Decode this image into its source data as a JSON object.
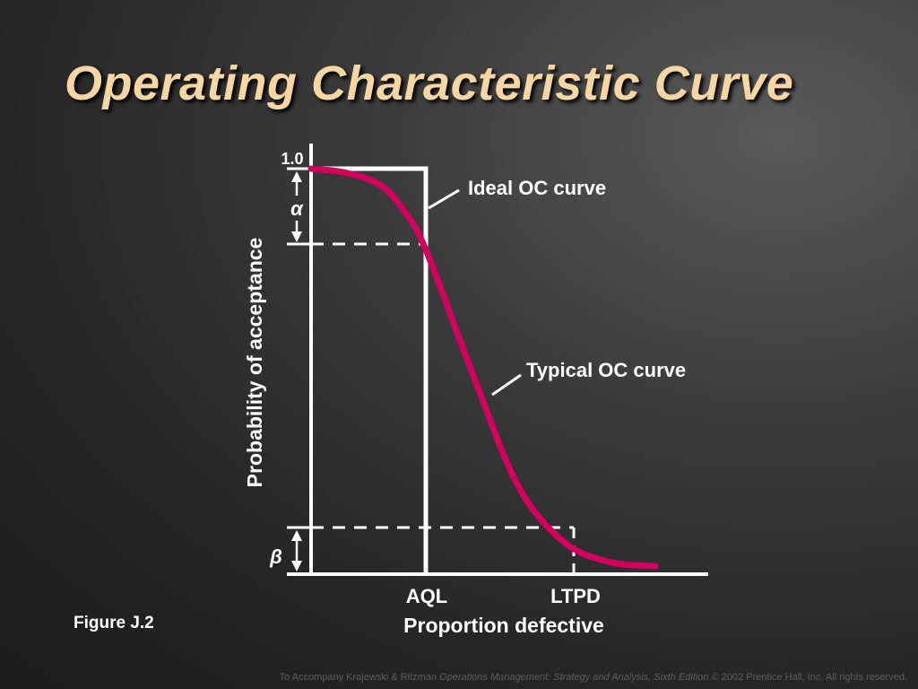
{
  "slide": {
    "title": "Operating Characteristic Curve",
    "figure_label": "Figure J.2",
    "footer": {
      "prefix": "To Accompany Krajewski & Ritzman ",
      "book_title": "Operations Management: Strategy and Analysis, Sixth Edition",
      "suffix": " © 2002 Prentice Hall, Inc. All rights reserved."
    },
    "colors": {
      "title": "#f6d6a2",
      "typical_curve": "#d4005e",
      "lines": "#ffffff"
    }
  },
  "chart_data": {
    "type": "line",
    "ylabel": "Probability of acceptance",
    "xlabel": "Proportion defective",
    "ytick_label": "1.0",
    "x_markers": [
      "AQL",
      "LTPD"
    ],
    "symbols": {
      "alpha": "α",
      "beta": "β"
    },
    "series": [
      {
        "name": "Ideal OC curve",
        "x": [
          0,
          1,
          1,
          3.25
        ],
        "y": [
          1.0,
          1.0,
          0.0,
          0.0
        ]
      },
      {
        "name": "Typical OC curve",
        "x": [
          0,
          0.3,
          0.6,
          0.8,
          1.0,
          1.4,
          1.8,
          2.2,
          2.6,
          3.0
        ],
        "y": [
          1.0,
          0.99,
          0.96,
          0.9,
          0.8,
          0.5,
          0.22,
          0.08,
          0.03,
          0.02
        ]
      }
    ]
  }
}
